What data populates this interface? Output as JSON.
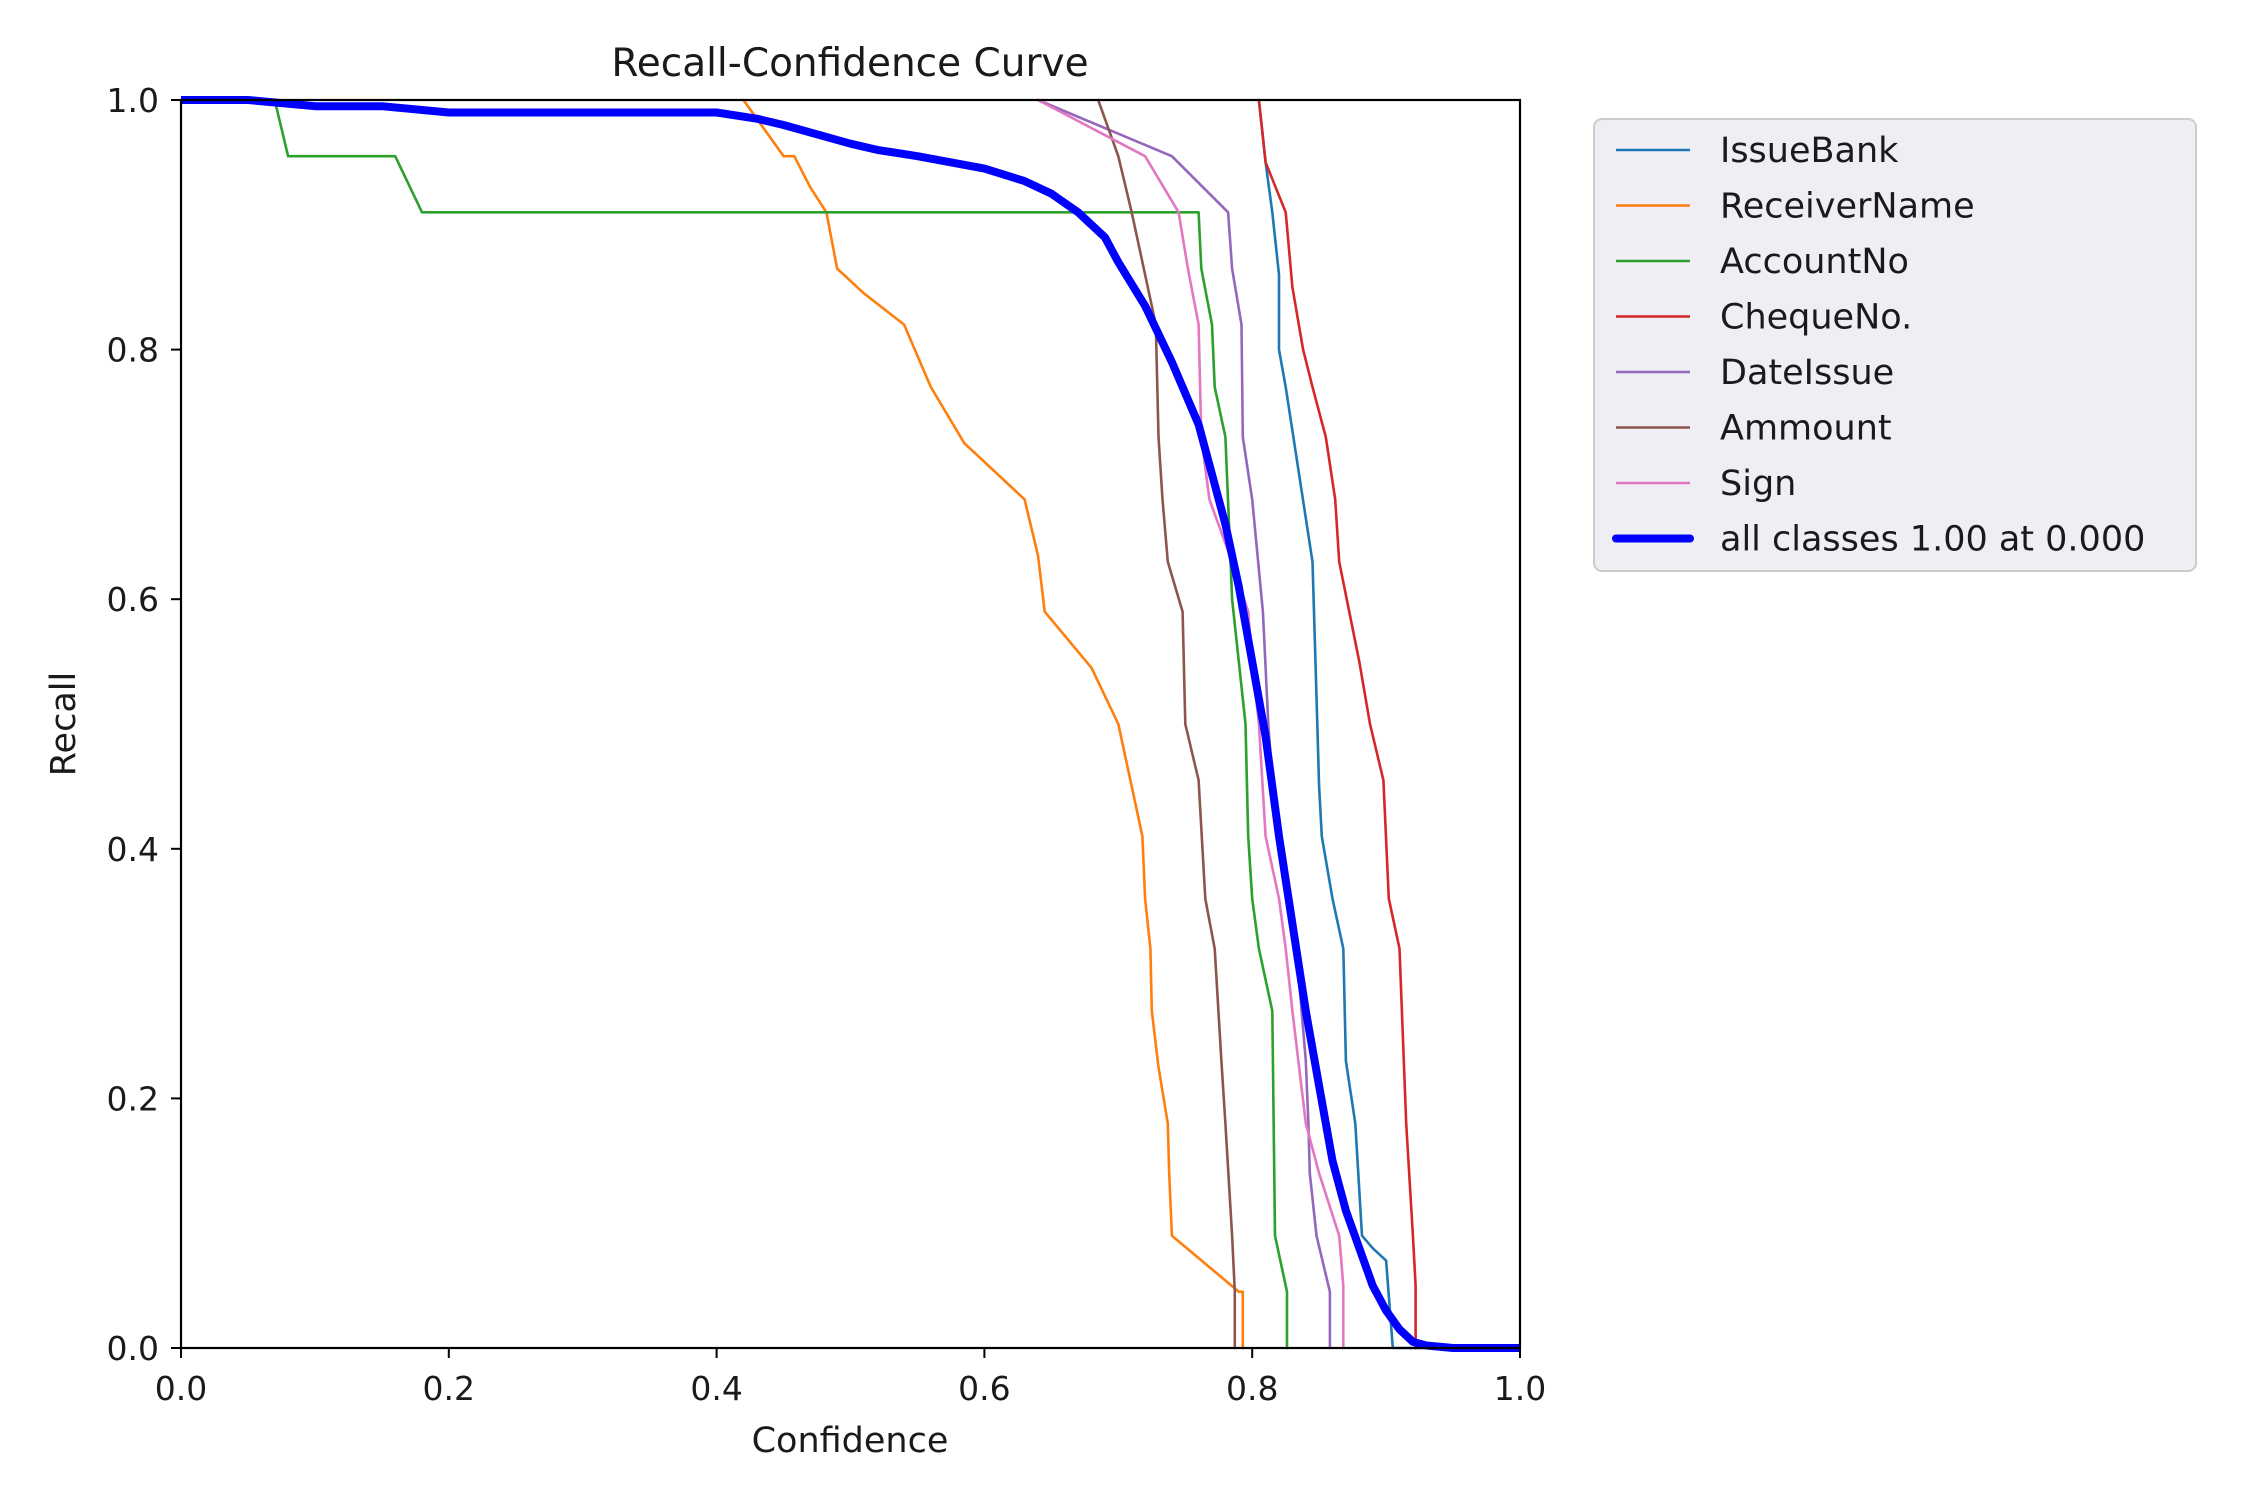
{
  "chart_data": {
    "type": "line",
    "title": "Recall-Confidence Curve",
    "xlabel": "Confidence",
    "ylabel": "Recall",
    "xlim": [
      0.0,
      1.0
    ],
    "ylim": [
      0.0,
      1.0
    ],
    "xticks": [
      "0.0",
      "0.2",
      "0.4",
      "0.6",
      "0.8",
      "1.0"
    ],
    "yticks": [
      "0.0",
      "0.2",
      "0.4",
      "0.6",
      "0.8",
      "1.0"
    ],
    "grid": false,
    "legend_position": "outside-right-top",
    "series": [
      {
        "name": "IssueBank",
        "color": "#1f77b4",
        "line_width": "thin",
        "points": [
          [
            0.805,
            1.0
          ],
          [
            0.81,
            0.95
          ],
          [
            0.815,
            0.91
          ],
          [
            0.82,
            0.86
          ],
          [
            0.82,
            0.8
          ],
          [
            0.825,
            0.77
          ],
          [
            0.835,
            0.7
          ],
          [
            0.845,
            0.63
          ],
          [
            0.847,
            0.56
          ],
          [
            0.85,
            0.45
          ],
          [
            0.852,
            0.41
          ],
          [
            0.86,
            0.36
          ],
          [
            0.868,
            0.32
          ],
          [
            0.87,
            0.23
          ],
          [
            0.877,
            0.18
          ],
          [
            0.882,
            0.09
          ],
          [
            0.89,
            0.08
          ],
          [
            0.9,
            0.07
          ],
          [
            0.905,
            0.0
          ],
          [
            1.0,
            0.0
          ]
        ]
      },
      {
        "name": "ReceiverName",
        "color": "#ff7f0e",
        "line_width": "thin",
        "points": [
          [
            0.42,
            1.0
          ],
          [
            0.44,
            0.97
          ],
          [
            0.45,
            0.955
          ],
          [
            0.458,
            0.955
          ],
          [
            0.47,
            0.93
          ],
          [
            0.482,
            0.91
          ],
          [
            0.49,
            0.865
          ],
          [
            0.51,
            0.845
          ],
          [
            0.54,
            0.82
          ],
          [
            0.56,
            0.77
          ],
          [
            0.585,
            0.725
          ],
          [
            0.63,
            0.68
          ],
          [
            0.64,
            0.635
          ],
          [
            0.645,
            0.59
          ],
          [
            0.68,
            0.545
          ],
          [
            0.7,
            0.5
          ],
          [
            0.71,
            0.45
          ],
          [
            0.718,
            0.41
          ],
          [
            0.72,
            0.36
          ],
          [
            0.724,
            0.32
          ],
          [
            0.725,
            0.27
          ],
          [
            0.73,
            0.225
          ],
          [
            0.737,
            0.18
          ],
          [
            0.738,
            0.14
          ],
          [
            0.74,
            0.09
          ],
          [
            0.79,
            0.045
          ],
          [
            0.793,
            0.045
          ],
          [
            0.793,
            0.0
          ]
        ]
      },
      {
        "name": "AccountNo",
        "color": "#2ca02c",
        "line_width": "thin",
        "points": [
          [
            0.0,
            1.0
          ],
          [
            0.07,
            1.0
          ],
          [
            0.08,
            0.955
          ],
          [
            0.16,
            0.955
          ],
          [
            0.18,
            0.91
          ],
          [
            0.76,
            0.91
          ],
          [
            0.762,
            0.865
          ],
          [
            0.77,
            0.82
          ],
          [
            0.772,
            0.77
          ],
          [
            0.78,
            0.73
          ],
          [
            0.785,
            0.6
          ],
          [
            0.79,
            0.55
          ],
          [
            0.795,
            0.5
          ],
          [
            0.797,
            0.41
          ],
          [
            0.8,
            0.36
          ],
          [
            0.805,
            0.32
          ],
          [
            0.815,
            0.27
          ],
          [
            0.817,
            0.09
          ],
          [
            0.826,
            0.045
          ],
          [
            0.826,
            0.0
          ]
        ]
      },
      {
        "name": "ChequeNo.",
        "color": "#d62728",
        "line_width": "thin",
        "points": [
          [
            0.805,
            1.0
          ],
          [
            0.81,
            0.95
          ],
          [
            0.825,
            0.91
          ],
          [
            0.83,
            0.85
          ],
          [
            0.838,
            0.8
          ],
          [
            0.845,
            0.77
          ],
          [
            0.855,
            0.73
          ],
          [
            0.862,
            0.68
          ],
          [
            0.865,
            0.63
          ],
          [
            0.88,
            0.55
          ],
          [
            0.888,
            0.5
          ],
          [
            0.898,
            0.455
          ],
          [
            0.902,
            0.36
          ],
          [
            0.91,
            0.32
          ],
          [
            0.915,
            0.18
          ],
          [
            0.92,
            0.09
          ],
          [
            0.922,
            0.05
          ],
          [
            0.922,
            0.0
          ]
        ]
      },
      {
        "name": "DateIssue",
        "color": "#9467bd",
        "line_width": "thin",
        "points": [
          [
            0.64,
            1.0
          ],
          [
            0.74,
            0.955
          ],
          [
            0.782,
            0.91
          ],
          [
            0.785,
            0.865
          ],
          [
            0.792,
            0.82
          ],
          [
            0.793,
            0.73
          ],
          [
            0.8,
            0.68
          ],
          [
            0.808,
            0.59
          ],
          [
            0.812,
            0.5
          ],
          [
            0.815,
            0.455
          ],
          [
            0.82,
            0.41
          ],
          [
            0.827,
            0.36
          ],
          [
            0.833,
            0.32
          ],
          [
            0.84,
            0.23
          ],
          [
            0.842,
            0.18
          ],
          [
            0.843,
            0.14
          ],
          [
            0.848,
            0.09
          ],
          [
            0.858,
            0.045
          ],
          [
            0.858,
            0.0
          ]
        ]
      },
      {
        "name": "Ammount",
        "color": "#8c564b",
        "line_width": "thin",
        "points": [
          [
            0.685,
            1.0
          ],
          [
            0.7,
            0.955
          ],
          [
            0.71,
            0.91
          ],
          [
            0.72,
            0.86
          ],
          [
            0.728,
            0.82
          ],
          [
            0.73,
            0.73
          ],
          [
            0.733,
            0.68
          ],
          [
            0.737,
            0.63
          ],
          [
            0.748,
            0.59
          ],
          [
            0.75,
            0.5
          ],
          [
            0.76,
            0.455
          ],
          [
            0.765,
            0.36
          ],
          [
            0.772,
            0.32
          ],
          [
            0.777,
            0.23
          ],
          [
            0.78,
            0.18
          ],
          [
            0.785,
            0.09
          ],
          [
            0.787,
            0.045
          ],
          [
            0.787,
            0.0
          ]
        ]
      },
      {
        "name": "Sign",
        "color": "#e377c2",
        "line_width": "thin",
        "points": [
          [
            0.64,
            1.0
          ],
          [
            0.72,
            0.955
          ],
          [
            0.745,
            0.91
          ],
          [
            0.752,
            0.865
          ],
          [
            0.76,
            0.82
          ],
          [
            0.762,
            0.73
          ],
          [
            0.768,
            0.68
          ],
          [
            0.785,
            0.63
          ],
          [
            0.797,
            0.59
          ],
          [
            0.8,
            0.55
          ],
          [
            0.805,
            0.5
          ],
          [
            0.81,
            0.41
          ],
          [
            0.82,
            0.36
          ],
          [
            0.825,
            0.32
          ],
          [
            0.83,
            0.27
          ],
          [
            0.84,
            0.18
          ],
          [
            0.85,
            0.14
          ],
          [
            0.865,
            0.09
          ],
          [
            0.868,
            0.05
          ],
          [
            0.868,
            0.0
          ]
        ]
      },
      {
        "name": "all classes 1.00 at 0.000",
        "color": "#0000ff",
        "line_width": "thick",
        "points": [
          [
            0.0,
            1.0
          ],
          [
            0.05,
            1.0
          ],
          [
            0.1,
            0.995
          ],
          [
            0.15,
            0.995
          ],
          [
            0.2,
            0.99
          ],
          [
            0.25,
            0.99
          ],
          [
            0.3,
            0.99
          ],
          [
            0.35,
            0.99
          ],
          [
            0.4,
            0.99
          ],
          [
            0.43,
            0.985
          ],
          [
            0.45,
            0.98
          ],
          [
            0.5,
            0.965
          ],
          [
            0.52,
            0.96
          ],
          [
            0.55,
            0.955
          ],
          [
            0.6,
            0.945
          ],
          [
            0.63,
            0.935
          ],
          [
            0.65,
            0.925
          ],
          [
            0.67,
            0.91
          ],
          [
            0.69,
            0.89
          ],
          [
            0.7,
            0.87
          ],
          [
            0.72,
            0.835
          ],
          [
            0.74,
            0.79
          ],
          [
            0.76,
            0.74
          ],
          [
            0.77,
            0.7
          ],
          [
            0.78,
            0.66
          ],
          [
            0.79,
            0.61
          ],
          [
            0.8,
            0.55
          ],
          [
            0.81,
            0.49
          ],
          [
            0.82,
            0.41
          ],
          [
            0.83,
            0.34
          ],
          [
            0.84,
            0.27
          ],
          [
            0.85,
            0.21
          ],
          [
            0.86,
            0.15
          ],
          [
            0.87,
            0.11
          ],
          [
            0.88,
            0.08
          ],
          [
            0.89,
            0.05
          ],
          [
            0.9,
            0.03
          ],
          [
            0.91,
            0.015
          ],
          [
            0.92,
            0.005
          ],
          [
            0.93,
            0.002
          ],
          [
            0.95,
            0.0
          ],
          [
            1.0,
            0.0
          ]
        ]
      }
    ]
  }
}
